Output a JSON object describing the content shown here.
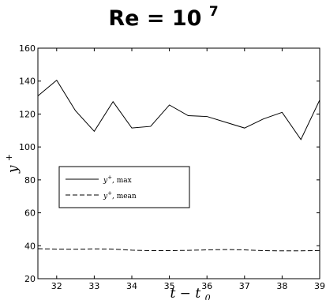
{
  "chart_data": {
    "type": "line",
    "title": {
      "main": "Re = 10",
      "exponent": "7"
    },
    "xlabel": "t − t",
    "xlabel_sub": "0",
    "ylabel": "y",
    "ylabel_sup": "+",
    "xlim": [
      31.5,
      39
    ],
    "ylim": [
      20,
      160
    ],
    "xticks": [
      "32",
      "33",
      "34",
      "35",
      "36",
      "37",
      "38",
      "39"
    ],
    "yticks": [
      "20",
      "40",
      "60",
      "80",
      "100",
      "120",
      "140",
      "160"
    ],
    "grid": false,
    "legend_position": "center-left",
    "x": [
      31.5,
      32,
      32.5,
      33,
      33.5,
      34,
      34.5,
      35,
      35.5,
      36,
      36.5,
      37,
      37.5,
      38,
      38.5,
      39
    ],
    "series": [
      {
        "label": "y",
        "label_sup": "+",
        "label_suffix": ", max",
        "style": "solid",
        "color": "#000000",
        "values": [
          131,
          140.5,
          122,
          109.5,
          127.5,
          111.5,
          112.5,
          125.5,
          119,
          118.5,
          115,
          111.5,
          117,
          121,
          104.5,
          128.5
        ]
      },
      {
        "label": "y",
        "label_sup": "+",
        "label_suffix": ", mean",
        "style": "dashed",
        "color": "#000000",
        "values": [
          38.2,
          38.0,
          37.9,
          38.1,
          38.0,
          37.3,
          37.0,
          37.0,
          37.2,
          37.5,
          37.7,
          37.5,
          37.0,
          36.9,
          36.9,
          37.1
        ]
      }
    ]
  }
}
